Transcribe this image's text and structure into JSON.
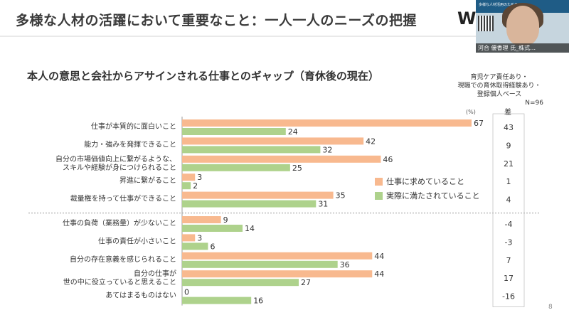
{
  "slide": {
    "title": "多様な人材の活躍において重要なこと：一人一人のニーズの把握",
    "logo_text": "W",
    "page_number": "8"
  },
  "video": {
    "banner_text": "多様な人材活用のための…",
    "participant_name": "河合 優香理 氏_株式…"
  },
  "colors": {
    "wanted": "#f8b98f",
    "actual": "#aed28c",
    "text": "#333333"
  },
  "chart_data": {
    "type": "bar",
    "orientation": "horizontal",
    "title": "本人の意思と会社からアサインされる仕事とのギャップ（育休後の現在）",
    "note_lines": [
      "育児ケア責任あり・",
      "現職での育休取得経験あり・",
      "登録個人ベース"
    ],
    "sample": "N=96",
    "unit_label": "(%)",
    "diff_header": "差",
    "categories": [
      [
        "仕事が本質的に面白いこと"
      ],
      [
        "能力・強みを発揮できること"
      ],
      [
        "自分の市場価値向上に繋がるような、",
        "スキルや経験が身につけられること"
      ],
      [
        "昇進に繋がること"
      ],
      [
        "裁量権を持って仕事ができること"
      ],
      [
        "仕事の負荷（業務量）が少ないこと"
      ],
      [
        "仕事の責任が小さいこと"
      ],
      [
        "自分の存在意義を感じられること"
      ],
      [
        "自分の仕事が",
        "世の中に役立っていると思えること"
      ],
      [
        "あてはまるものはない"
      ]
    ],
    "series": [
      {
        "name": "仕事に求めていること",
        "values": [
          67,
          42,
          46,
          3,
          35,
          9,
          3,
          44,
          44,
          0
        ]
      },
      {
        "name": "実際に満たされていること",
        "values": [
          24,
          32,
          25,
          2,
          31,
          14,
          6,
          36,
          27,
          16
        ]
      }
    ],
    "differences": [
      "43",
      "9",
      "21",
      "1",
      "4",
      "-4",
      "-3",
      "7",
      "17",
      "-16"
    ],
    "separator_after_index": 4,
    "xlim": [
      0,
      67
    ]
  }
}
